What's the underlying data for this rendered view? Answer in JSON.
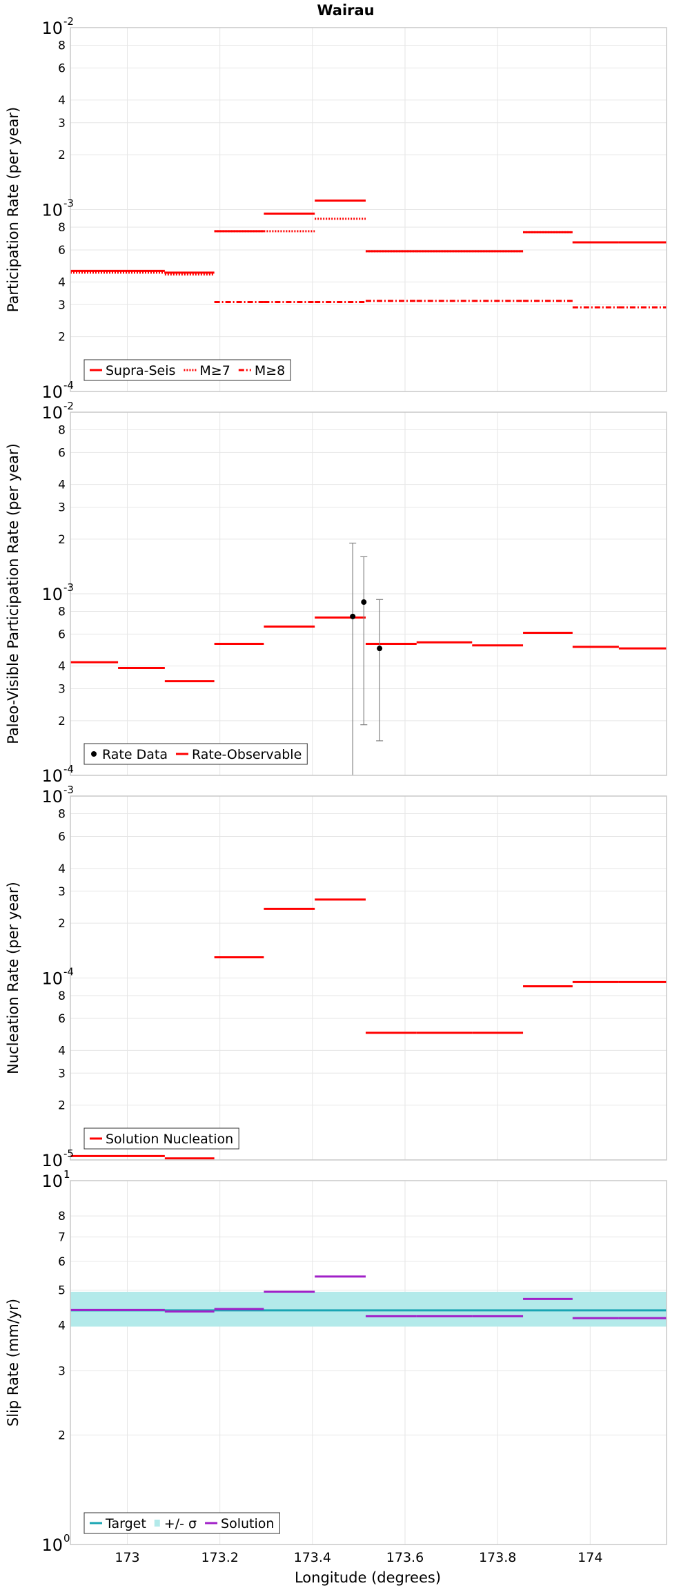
{
  "title": "Wairau",
  "xlabel": "Longitude (degrees)",
  "x_ticks": [
    {
      "value": 173.0,
      "label": "173"
    },
    {
      "value": 173.2,
      "label": "173.2"
    },
    {
      "value": 173.4,
      "label": "173.4"
    },
    {
      "value": 173.6,
      "label": "173.6"
    },
    {
      "value": 173.8,
      "label": "173.8"
    },
    {
      "value": 174.0,
      "label": "174"
    }
  ],
  "colors": {
    "red": "#ff0000",
    "black": "#000000",
    "teal": "#1aa5b3",
    "band": "#b3eaea",
    "purple": "#a020c8",
    "errorbar": "#808080",
    "grid": "#e6e6e6",
    "frame": "#c8c8c8"
  },
  "chart_data": [
    {
      "type": "line",
      "ylabel": "Participation Rate (per year)",
      "yscale": "log",
      "xlim": [
        172.877,
        174.165
      ],
      "ylim": [
        0.0001,
        0.01
      ],
      "y_ticks": [
        {
          "value": 0.0001,
          "base": "10",
          "exp": "-4"
        },
        {
          "value": 0.0002,
          "label": "2"
        },
        {
          "value": 0.0003,
          "label": "3"
        },
        {
          "value": 0.0004,
          "label": "4"
        },
        {
          "value": 0.0006,
          "label": "6"
        },
        {
          "value": 0.0008,
          "label": "8"
        },
        {
          "value": 0.001,
          "base": "10",
          "exp": "-3"
        },
        {
          "value": 0.002,
          "label": "2"
        },
        {
          "value": 0.003,
          "label": "3"
        },
        {
          "value": 0.004,
          "label": "4"
        },
        {
          "value": 0.006,
          "label": "6"
        },
        {
          "value": 0.008,
          "label": "8"
        },
        {
          "value": 0.01,
          "base": "10",
          "exp": "-2"
        }
      ],
      "legend": [
        {
          "label": "Supra-Seis",
          "style": "solid",
          "color": "#ff0000"
        },
        {
          "label": "M≥7",
          "style": "dotted",
          "color": "#ff0000"
        },
        {
          "label": "M≥8",
          "style": "dashdot",
          "color": "#ff0000"
        }
      ],
      "series": [
        {
          "name": "Supra-Seis",
          "style": "solid",
          "color": "#ff0000",
          "segments": [
            [
              172.877,
              173.081,
              0.00046
            ],
            [
              173.081,
              173.188,
              0.00045
            ],
            [
              173.188,
              173.295,
              0.00076
            ],
            [
              173.295,
              173.405,
              0.00095
            ],
            [
              173.405,
              173.515,
              0.00112
            ],
            [
              173.515,
              173.625,
              0.00059
            ],
            [
              173.625,
              173.745,
              0.00059
            ],
            [
              173.745,
              173.855,
              0.00059
            ],
            [
              173.855,
              173.962,
              0.00075
            ],
            [
              173.962,
              174.062,
              0.00066
            ],
            [
              174.062,
              174.165,
              0.00066
            ]
          ]
        },
        {
          "name": "M≥7",
          "style": "dotted",
          "color": "#ff0000",
          "segments": [
            [
              172.877,
              173.081,
              0.00045
            ],
            [
              173.081,
              173.188,
              0.00044
            ],
            [
              173.188,
              173.295,
              0.00076
            ],
            [
              173.295,
              173.405,
              0.00076
            ],
            [
              173.405,
              173.515,
              0.00089
            ],
            [
              173.515,
              173.625,
              0.00059
            ],
            [
              173.625,
              173.745,
              0.00059
            ],
            [
              173.745,
              173.855,
              0.00059
            ],
            [
              173.855,
              173.962,
              0.00075
            ],
            [
              173.962,
              174.062,
              0.00066
            ],
            [
              174.062,
              174.165,
              0.00066
            ]
          ]
        },
        {
          "name": "M≥8",
          "style": "dashdot",
          "color": "#ff0000",
          "segments": [
            [
              173.188,
              173.295,
              0.00031
            ],
            [
              173.295,
              173.405,
              0.00031
            ],
            [
              173.405,
              173.515,
              0.00031
            ],
            [
              173.515,
              173.625,
              0.000315
            ],
            [
              173.625,
              173.745,
              0.000315
            ],
            [
              173.745,
              173.855,
              0.000315
            ],
            [
              173.855,
              173.962,
              0.000315
            ],
            [
              173.962,
              174.062,
              0.00029
            ],
            [
              174.062,
              174.165,
              0.00029
            ]
          ]
        }
      ]
    },
    {
      "type": "line",
      "ylabel": "Paleo-Visible Participation Rate (per year)",
      "yscale": "log",
      "xlim": [
        172.877,
        174.165
      ],
      "ylim": [
        0.0001,
        0.01
      ],
      "y_ticks": [
        {
          "value": 0.0001,
          "base": "10",
          "exp": "-4"
        },
        {
          "value": 0.0002,
          "label": "2"
        },
        {
          "value": 0.0003,
          "label": "3"
        },
        {
          "value": 0.0004,
          "label": "4"
        },
        {
          "value": 0.0006,
          "label": "6"
        },
        {
          "value": 0.0008,
          "label": "8"
        },
        {
          "value": 0.001,
          "base": "10",
          "exp": "-3"
        },
        {
          "value": 0.002,
          "label": "2"
        },
        {
          "value": 0.003,
          "label": "3"
        },
        {
          "value": 0.004,
          "label": "4"
        },
        {
          "value": 0.006,
          "label": "6"
        },
        {
          "value": 0.008,
          "label": "8"
        },
        {
          "value": 0.01,
          "base": "10",
          "exp": "-2"
        }
      ],
      "legend": [
        {
          "label": "Rate Data",
          "style": "point",
          "color": "#000000"
        },
        {
          "label": "Rate-Observable",
          "style": "solid",
          "color": "#ff0000"
        }
      ],
      "series": [
        {
          "name": "Rate-Observable",
          "style": "solid",
          "color": "#ff0000",
          "segments": [
            [
              172.877,
              172.98,
              0.00042
            ],
            [
              172.98,
              173.081,
              0.00039
            ],
            [
              173.081,
              173.188,
              0.00033
            ],
            [
              173.188,
              173.295,
              0.00053
            ],
            [
              173.295,
              173.405,
              0.00066
            ],
            [
              173.405,
              173.515,
              0.00074
            ],
            [
              173.515,
              173.625,
              0.00053
            ],
            [
              173.625,
              173.745,
              0.00054
            ],
            [
              173.745,
              173.855,
              0.00052
            ],
            [
              173.855,
              173.962,
              0.00061
            ],
            [
              173.962,
              174.062,
              0.00051
            ],
            [
              174.062,
              174.165,
              0.0005
            ]
          ]
        }
      ],
      "points": [
        {
          "name": "Rate Data",
          "x": 173.487,
          "y": 0.00075,
          "low": 0.0001,
          "high": 0.0019
        },
        {
          "name": "Rate Data",
          "x": 173.511,
          "y": 0.0009,
          "low": 0.00019,
          "high": 0.0016
        },
        {
          "name": "Rate Data",
          "x": 173.545,
          "y": 0.0005,
          "low": 0.000155,
          "high": 0.00093
        }
      ]
    },
    {
      "type": "line",
      "ylabel": "Nucleation Rate (per year)",
      "yscale": "log",
      "xlim": [
        172.877,
        174.165
      ],
      "ylim": [
        1e-05,
        0.001
      ],
      "y_ticks": [
        {
          "value": 1e-05,
          "base": "10",
          "exp": "-5"
        },
        {
          "value": 2e-05,
          "label": "2"
        },
        {
          "value": 3e-05,
          "label": "3"
        },
        {
          "value": 4e-05,
          "label": "4"
        },
        {
          "value": 6e-05,
          "label": "6"
        },
        {
          "value": 8e-05,
          "label": "8"
        },
        {
          "value": 0.0001,
          "base": "10",
          "exp": "-4"
        },
        {
          "value": 0.0002,
          "label": "2"
        },
        {
          "value": 0.0003,
          "label": "3"
        },
        {
          "value": 0.0004,
          "label": "4"
        },
        {
          "value": 0.0006,
          "label": "6"
        },
        {
          "value": 0.0008,
          "label": "8"
        },
        {
          "value": 0.001,
          "base": "10",
          "exp": "-3"
        }
      ],
      "legend": [
        {
          "label": "Solution Nucleation",
          "style": "solid",
          "color": "#ff0000"
        }
      ],
      "series": [
        {
          "name": "Solution Nucleation",
          "style": "solid",
          "color": "#ff0000",
          "segments": [
            [
              172.877,
              173.081,
              1.05e-05
            ],
            [
              173.081,
              173.188,
              1.02e-05
            ],
            [
              173.188,
              173.295,
              0.00013
            ],
            [
              173.295,
              173.405,
              0.00024
            ],
            [
              173.405,
              173.515,
              0.00027
            ],
            [
              173.515,
              173.625,
              5e-05
            ],
            [
              173.625,
              173.745,
              5e-05
            ],
            [
              173.745,
              173.855,
              5e-05
            ],
            [
              173.855,
              173.962,
              9e-05
            ],
            [
              173.962,
              174.062,
              9.5e-05
            ],
            [
              174.062,
              174.165,
              9.5e-05
            ]
          ]
        }
      ]
    },
    {
      "type": "line",
      "ylabel": "Slip Rate (mm/yr)",
      "yscale": "log",
      "xlim": [
        172.877,
        174.165
      ],
      "ylim": [
        1,
        10
      ],
      "y_ticks": [
        {
          "value": 1,
          "base": "10",
          "exp": "0"
        },
        {
          "value": 2,
          "label": "2"
        },
        {
          "value": 3,
          "label": "3"
        },
        {
          "value": 4,
          "label": "4"
        },
        {
          "value": 5,
          "label": "5"
        },
        {
          "value": 6,
          "label": "6"
        },
        {
          "value": 7,
          "label": "7"
        },
        {
          "value": 8,
          "label": "8"
        },
        {
          "value": 10,
          "base": "10",
          "exp": "1"
        }
      ],
      "legend": [
        {
          "label": "Target",
          "style": "solid",
          "color": "#1aa5b3"
        },
        {
          "label": "+/- σ",
          "style": "band",
          "color": "#b3eaea"
        },
        {
          "label": "Solution",
          "style": "solid",
          "color": "#a020c8"
        }
      ],
      "band": {
        "name": "+/- σ",
        "low": 3.97,
        "high": 4.95
      },
      "target": {
        "name": "Target",
        "value": 4.4
      },
      "series": [
        {
          "name": "Solution",
          "style": "solid",
          "color": "#a020c8",
          "segments": [
            [
              172.877,
              173.081,
              4.41
            ],
            [
              173.081,
              173.188,
              4.37
            ],
            [
              173.188,
              173.295,
              4.44
            ],
            [
              173.295,
              173.405,
              4.95
            ],
            [
              173.405,
              173.515,
              5.45
            ],
            [
              173.515,
              173.625,
              4.24
            ],
            [
              173.625,
              173.745,
              4.24
            ],
            [
              173.745,
              173.855,
              4.24
            ],
            [
              173.855,
              173.962,
              4.73
            ],
            [
              173.962,
              174.062,
              4.19
            ],
            [
              174.062,
              174.165,
              4.19
            ]
          ]
        }
      ]
    }
  ]
}
